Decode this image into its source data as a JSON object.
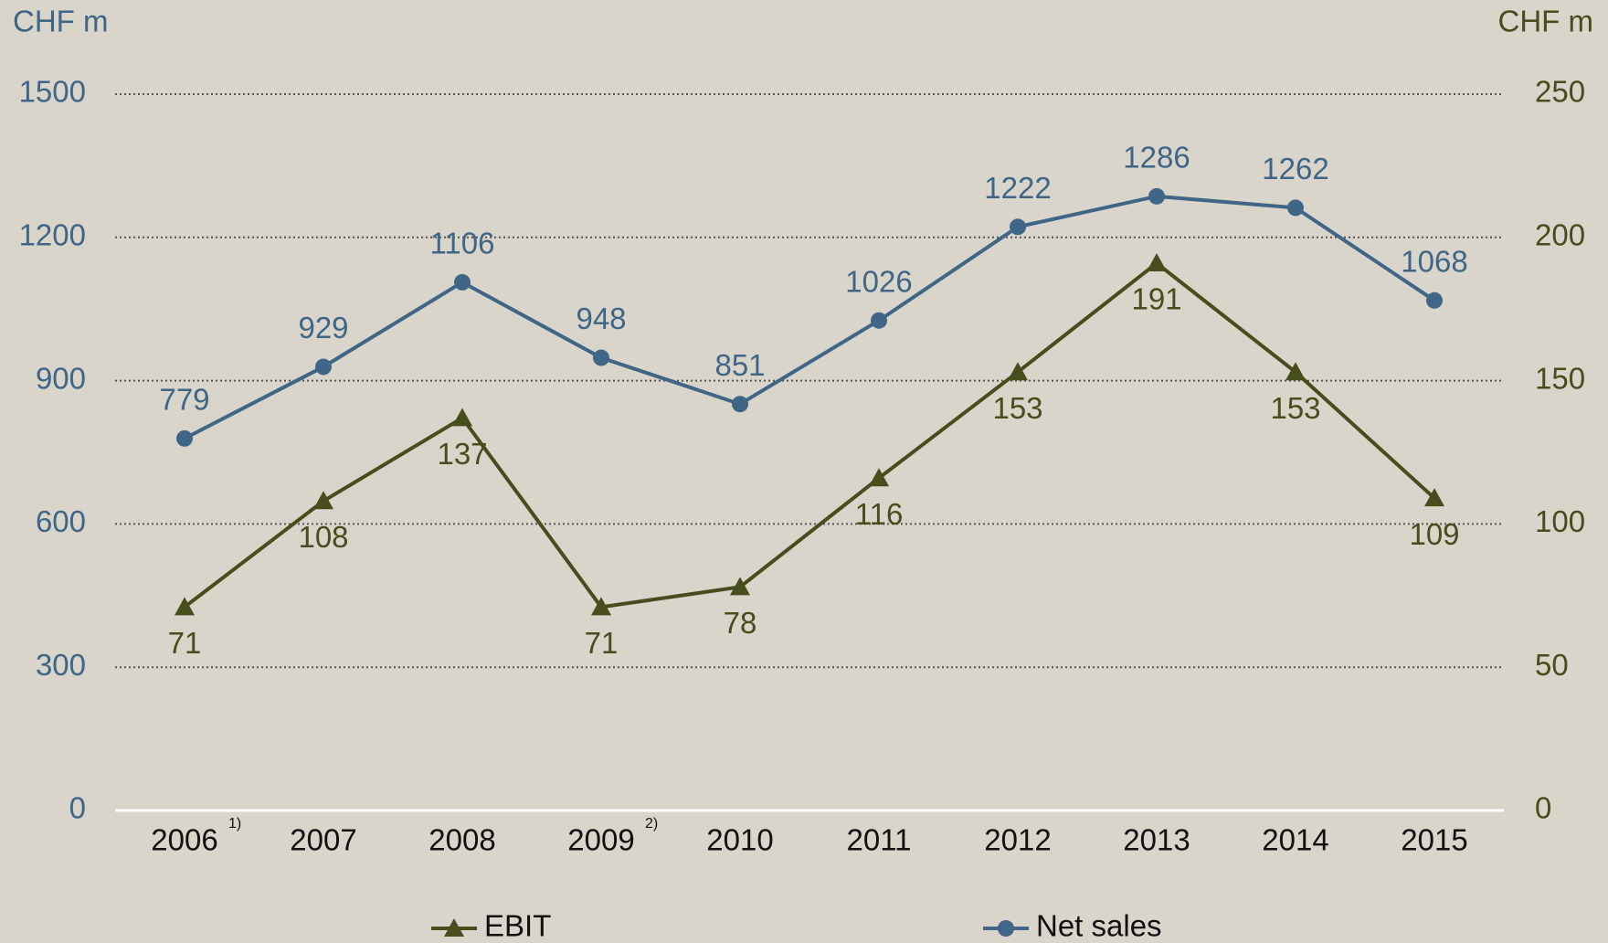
{
  "chart_data": {
    "type": "line",
    "ylabel": "CHF m",
    "y2label": "CHF m",
    "categories": [
      "2006",
      "2007",
      "2008",
      "2009",
      "2010",
      "2011",
      "2012",
      "2013",
      "2014",
      "2015"
    ],
    "category_notes": [
      "1)",
      null,
      null,
      "2)",
      null,
      null,
      null,
      null,
      null,
      null
    ],
    "series": [
      {
        "name": "EBIT",
        "color": "#474d1c",
        "marker": "triangle",
        "axis": "y2",
        "values": [
          71,
          108,
          137,
          71,
          78,
          116,
          153,
          191,
          153,
          109
        ]
      },
      {
        "name": "Net sales",
        "color": "#3f6587",
        "marker": "circle",
        "values": [
          779,
          929,
          1106,
          948,
          851,
          1026,
          1222,
          1286,
          1262,
          1068
        ]
      }
    ],
    "ylim": [
      0,
      1500
    ],
    "yticks": [
      0,
      300,
      600,
      900,
      1200,
      1500
    ],
    "y2lim": [
      0,
      250
    ],
    "y2ticks": [
      0,
      50,
      100,
      150,
      200,
      250
    ],
    "grid": true,
    "legend": "bottom"
  }
}
